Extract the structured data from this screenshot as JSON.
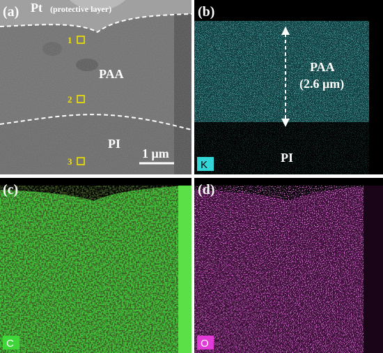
{
  "panels": [
    {
      "label": "(a)",
      "top_layer": "Pt",
      "top_layer_note": "(protective layer)",
      "region_upper": "PAA",
      "region_lower": "PI",
      "points": [
        "1",
        "2",
        "3"
      ],
      "scale_bar": "1 μm"
    },
    {
      "label": "(b)",
      "region_upper": "PAA",
      "thickness": "(2.6 μm)",
      "region_lower": "PI",
      "element": "K"
    },
    {
      "label": "(c)",
      "element": "C"
    },
    {
      "label": "(d)",
      "element": "O"
    }
  ]
}
